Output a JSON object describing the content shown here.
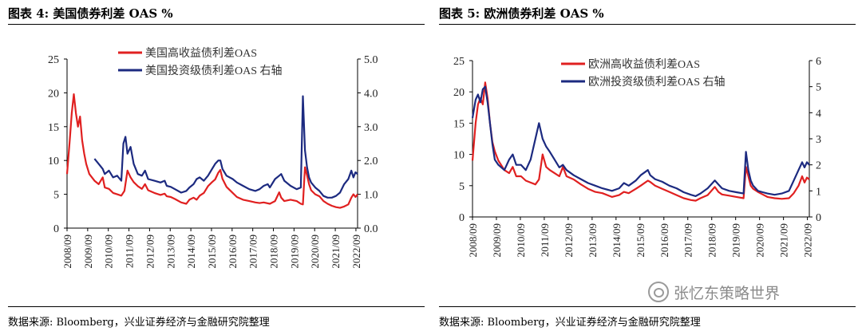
{
  "figures": [
    {
      "title": "图表 4:  美国债券利差 OAS %",
      "source": "数据来源:  Bloomberg，兴业证券经济与金融研究院整理",
      "colors": {
        "series1": "#e02020",
        "series2": "#1c2a80",
        "axis": "#000000"
      },
      "chart_data": {
        "type": "line",
        "x_ticks": [
          "2008/09",
          "2009/09",
          "2010/09",
          "2011/09",
          "2012/09",
          "2013/09",
          "2014/09",
          "2015/09",
          "2016/09",
          "2017/09",
          "2018/09",
          "2019/09",
          "2020/09",
          "2021/09",
          "2022/09"
        ],
        "x_range": [
          2008.67,
          2022.75
        ],
        "left_axis": {
          "range": [
            0,
            25
          ],
          "ticks": [
            "0",
            "5",
            "10",
            "15",
            "20",
            "25"
          ],
          "tick_values": [
            0,
            5,
            10,
            15,
            20,
            25
          ]
        },
        "right_axis": {
          "range": [
            0.0,
            5.0
          ],
          "ticks": [
            "0.0",
            "1.0",
            "2.0",
            "3.0",
            "4.0",
            "5.0"
          ],
          "tick_values": [
            0,
            1,
            2,
            3,
            4,
            5
          ]
        },
        "legend": [
          {
            "label": "美国高收益债利差OAS",
            "series": 0
          },
          {
            "label": "美国投资级债利差OAS 右轴",
            "series": 1
          }
        ],
        "series": [
          {
            "name": "美国高收益债利差OAS",
            "axis": "left",
            "color": "#e02020",
            "x": [
              2008.67,
              2008.8,
              2008.9,
              2009.0,
              2009.1,
              2009.2,
              2009.3,
              2009.4,
              2009.5,
              2009.6,
              2009.75,
              2010.0,
              2010.2,
              2010.4,
              2010.5,
              2010.7,
              2010.9,
              2011.1,
              2011.3,
              2011.45,
              2011.6,
              2011.75,
              2011.9,
              2012.1,
              2012.3,
              2012.45,
              2012.6,
              2012.9,
              2013.2,
              2013.4,
              2013.5,
              2013.7,
              2013.9,
              2014.2,
              2014.45,
              2014.6,
              2014.8,
              2014.95,
              2015.1,
              2015.3,
              2015.5,
              2015.7,
              2015.85,
              2016.0,
              2016.1,
              2016.2,
              2016.4,
              2016.7,
              2016.9,
              2017.2,
              2017.5,
              2017.8,
              2018.0,
              2018.2,
              2018.5,
              2018.75,
              2018.95,
              2019.05,
              2019.2,
              2019.5,
              2019.8,
              2020.0,
              2020.1,
              2020.2,
              2020.3,
              2020.4,
              2020.5,
              2020.7,
              2020.9,
              2021.1,
              2021.3,
              2021.5,
              2021.7,
              2021.9,
              2022.1,
              2022.3,
              2022.45,
              2022.55,
              2022.65,
              2022.75
            ],
            "y": [
              8,
              13,
              17,
              19.8,
              17,
              15,
              16.5,
              13,
              11,
              9.5,
              8,
              7,
              6.5,
              7.5,
              6,
              5.8,
              5.2,
              5,
              4.8,
              5.5,
              8.5,
              7.5,
              6.8,
              6.2,
              5.8,
              6.5,
              5.6,
              5.2,
              4.9,
              5.1,
              4.7,
              4.6,
              4.3,
              3.8,
              3.6,
              4.2,
              4.5,
              4.2,
              4.8,
              5.2,
              6.2,
              6.8,
              7.2,
              8.2,
              8.6,
              7.3,
              6.1,
              5.2,
              4.6,
              4.2,
              4,
              3.8,
              3.7,
              3.8,
              3.6,
              4,
              5.3,
              4.5,
              4,
              4.2,
              4,
              3.6,
              3.5,
              9,
              7.8,
              6.5,
              5.6,
              5,
              4.7,
              4,
              3.6,
              3.3,
              3.1,
              3,
              3.2,
              3.5,
              4.5,
              5,
              4.6,
              5
            ]
          },
          {
            "name": "美国投资级债利差OAS 右轴",
            "axis": "right",
            "color": "#1c2a80",
            "x": [
              2010.0,
              2010.2,
              2010.4,
              2010.5,
              2010.7,
              2010.9,
              2011.1,
              2011.3,
              2011.4,
              2011.5,
              2011.6,
              2011.75,
              2011.9,
              2012.1,
              2012.3,
              2012.45,
              2012.6,
              2012.9,
              2013.2,
              2013.4,
              2013.5,
              2013.7,
              2013.9,
              2014.2,
              2014.45,
              2014.6,
              2014.8,
              2014.95,
              2015.1,
              2015.3,
              2015.5,
              2015.7,
              2015.85,
              2016.0,
              2016.1,
              2016.2,
              2016.4,
              2016.7,
              2016.9,
              2017.2,
              2017.5,
              2017.8,
              2018.0,
              2018.2,
              2018.4,
              2018.5,
              2018.75,
              2018.95,
              2019.05,
              2019.2,
              2019.5,
              2019.8,
              2020.0,
              2020.1,
              2020.2,
              2020.3,
              2020.4,
              2020.5,
              2020.7,
              2020.9,
              2021.1,
              2021.3,
              2021.5,
              2021.7,
              2021.9,
              2022.1,
              2022.3,
              2022.45,
              2022.55,
              2022.65,
              2022.75
            ],
            "y": [
              2.05,
              1.9,
              1.75,
              1.6,
              1.7,
              1.5,
              1.55,
              1.4,
              2.5,
              2.7,
              2.2,
              2.4,
              1.9,
              1.6,
              1.55,
              1.7,
              1.45,
              1.4,
              1.35,
              1.4,
              1.25,
              1.22,
              1.15,
              1.05,
              1.1,
              1.2,
              1.3,
              1.45,
              1.5,
              1.4,
              1.55,
              1.75,
              1.9,
              2.0,
              2.0,
              1.75,
              1.55,
              1.45,
              1.35,
              1.25,
              1.15,
              1.1,
              1.15,
              1.25,
              1.3,
              1.2,
              1.45,
              1.55,
              1.6,
              1.4,
              1.25,
              1.15,
              1.2,
              3.9,
              2.3,
              1.8,
              1.5,
              1.35,
              1.2,
              1.1,
              0.95,
              0.9,
              0.9,
              0.95,
              1.05,
              1.3,
              1.45,
              1.7,
              1.5,
              1.65,
              1.6
            ]
          }
        ]
      }
    },
    {
      "title": "图表 5:  欧洲债券利差 OAS %",
      "source": "数据来源:  Bloomberg，兴业证券经济与金融研究院整理",
      "colors": {
        "series1": "#e02020",
        "series2": "#1c2a80",
        "axis": "#000000"
      },
      "chart_data": {
        "type": "line",
        "x_ticks": [
          "2008/09",
          "2009/09",
          "2010/09",
          "2011/09",
          "2012/09",
          "2013/09",
          "2014/09",
          "2015/09",
          "2016/09",
          "2017/09",
          "2018/09",
          "2019/09",
          "2020/09",
          "2021/09",
          "2022/09"
        ],
        "x_range": [
          2008.67,
          2022.75
        ],
        "left_axis": {
          "range": [
            0,
            25
          ],
          "ticks": [
            "0",
            "5",
            "10",
            "15",
            "20",
            "25"
          ],
          "tick_values": [
            0,
            5,
            10,
            15,
            20,
            25
          ]
        },
        "right_axis": {
          "range": [
            0,
            6
          ],
          "ticks": [
            "0",
            "1",
            "2",
            "3",
            "4",
            "5",
            "6"
          ],
          "tick_values": [
            0,
            1,
            2,
            3,
            4,
            5,
            6
          ]
        },
        "legend": [
          {
            "label": "欧洲高收益债利差OAS",
            "series": 0
          },
          {
            "label": "欧洲投资级债利差OAS 右轴",
            "series": 1
          }
        ],
        "series": [
          {
            "name": "欧洲高收益债利差OAS",
            "axis": "left",
            "color": "#e02020",
            "x": [
              2008.67,
              2008.8,
              2008.9,
              2009.0,
              2009.1,
              2009.2,
              2009.3,
              2009.4,
              2009.5,
              2009.6,
              2009.75,
              2010.0,
              2010.2,
              2010.35,
              2010.5,
              2010.7,
              2010.9,
              2011.1,
              2011.3,
              2011.45,
              2011.6,
              2011.75,
              2011.9,
              2012.1,
              2012.3,
              2012.45,
              2012.6,
              2012.9,
              2013.2,
              2013.5,
              2013.8,
              2014.1,
              2014.5,
              2014.8,
              2015.0,
              2015.2,
              2015.5,
              2015.7,
              2016.0,
              2016.1,
              2016.3,
              2016.6,
              2016.9,
              2017.2,
              2017.5,
              2017.8,
              2018.0,
              2018.2,
              2018.5,
              2018.8,
              2018.95,
              2019.1,
              2019.4,
              2019.7,
              2020.0,
              2020.1,
              2020.2,
              2020.3,
              2020.4,
              2020.6,
              2020.8,
              2021.0,
              2021.3,
              2021.6,
              2021.9,
              2022.1,
              2022.3,
              2022.45,
              2022.55,
              2022.65,
              2022.75
            ],
            "y": [
              9,
              15,
              18,
              19,
              18,
              21.5,
              19,
              15,
              12,
              10.5,
              9,
              7.5,
              7,
              8,
              6.5,
              6.5,
              5.8,
              5.5,
              5.2,
              6,
              10,
              8,
              7.5,
              7,
              6.5,
              8,
              6.5,
              6,
              5.2,
              4.5,
              4,
              3.8,
              3.2,
              3.5,
              4,
              3.8,
              4.5,
              5,
              5.8,
              5.6,
              5,
              4.5,
              4,
              3.5,
              3,
              2.7,
              2.6,
              3,
              3.5,
              4.8,
              4,
              3.6,
              3.4,
              3.2,
              3,
              8,
              6.5,
              5,
              4.5,
              4,
              3.6,
              3.2,
              3,
              2.9,
              3,
              3.8,
              5,
              6.5,
              5.5,
              6.3,
              6
            ]
          },
          {
            "name": "欧洲投资级债利差OAS 右轴",
            "axis": "right",
            "color": "#1c2a80",
            "x": [
              2008.67,
              2008.8,
              2008.9,
              2009.0,
              2009.1,
              2009.2,
              2009.3,
              2009.4,
              2009.5,
              2009.6,
              2009.75,
              2010.0,
              2010.2,
              2010.35,
              2010.5,
              2010.7,
              2010.9,
              2011.1,
              2011.3,
              2011.45,
              2011.6,
              2011.75,
              2011.9,
              2012.1,
              2012.3,
              2012.45,
              2012.6,
              2012.9,
              2013.2,
              2013.5,
              2013.8,
              2014.1,
              2014.5,
              2014.8,
              2015.0,
              2015.2,
              2015.5,
              2015.7,
              2016.0,
              2016.1,
              2016.3,
              2016.6,
              2016.9,
              2017.2,
              2017.5,
              2017.8,
              2018.0,
              2018.2,
              2018.5,
              2018.8,
              2018.95,
              2019.1,
              2019.4,
              2019.7,
              2020.0,
              2020.1,
              2020.2,
              2020.3,
              2020.4,
              2020.6,
              2020.8,
              2021.0,
              2021.3,
              2021.6,
              2021.9,
              2022.1,
              2022.3,
              2022.45,
              2022.55,
              2022.65,
              2022.75
            ],
            "y": [
              3.8,
              4.5,
              4.7,
              4.4,
              4.9,
              5.0,
              4.4,
              3.6,
              2.8,
              2.2,
              2.0,
              1.8,
              2.2,
              2.4,
              2.0,
              2.0,
              1.8,
              2.2,
              3.0,
              3.6,
              3.0,
              2.7,
              2.5,
              2.2,
              1.9,
              2.0,
              1.8,
              1.6,
              1.45,
              1.3,
              1.2,
              1.1,
              1.0,
              1.1,
              1.3,
              1.2,
              1.4,
              1.6,
              1.8,
              1.6,
              1.45,
              1.35,
              1.2,
              1.1,
              0.95,
              0.85,
              0.8,
              0.9,
              1.1,
              1.4,
              1.25,
              1.1,
              1.0,
              0.95,
              0.9,
              2.5,
              1.8,
              1.4,
              1.2,
              1.0,
              0.95,
              0.9,
              0.85,
              0.9,
              1.0,
              1.4,
              1.8,
              2.1,
              1.9,
              2.1,
              2.0
            ]
          }
        ]
      }
    }
  ],
  "watermark": {
    "text": "张忆东策略世界",
    "icon": "wechat-icon"
  }
}
